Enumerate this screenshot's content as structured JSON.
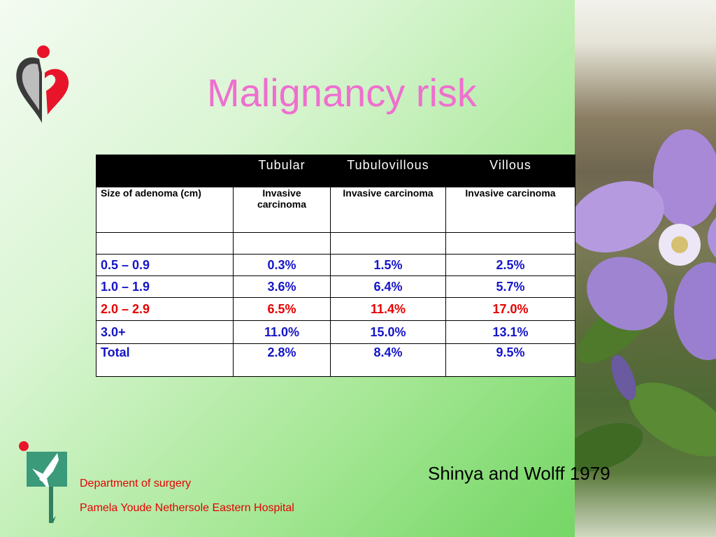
{
  "slide": {
    "title": "Malignancy risk",
    "citation": "Shinya and Wolff 1979",
    "footer": {
      "department": "Department of surgery",
      "hospital": "Pamela Youde Nethersole Eastern Hospital"
    }
  },
  "table": {
    "columns": [
      "",
      "Tubular",
      "Tubulovillous",
      "Villous"
    ],
    "subheader": [
      "Size of adenoma (cm)",
      "Invasive carcinoma",
      "Invasive carcinoma",
      "Invasive carcinoma"
    ],
    "rows": [
      {
        "size": "0.5 – 0.9",
        "tubular": "0.3%",
        "tubulovillous": "1.5%",
        "villous": "2.5%"
      },
      {
        "size": "1.0 – 1.9",
        "tubular": "3.6%",
        "tubulovillous": "6.4%",
        "villous": "5.7%"
      },
      {
        "size": "2.0 – 2.9",
        "tubular": "6.5%",
        "tubulovillous": "11.4%",
        "villous": "17.0%"
      },
      {
        "size": "3.0+",
        "tubular": "11.0%",
        "tubulovillous": "15.0%",
        "villous": "13.1%"
      },
      {
        "size": "Total",
        "tubular": "2.8%",
        "tubulovillous": "8.4%",
        "villous": "9.5%"
      }
    ]
  },
  "colors": {
    "title": "#ef6fcf",
    "data_text": "#1515c8",
    "highlight_row": "#e60000",
    "footer_text": "#e60000"
  },
  "icons": {
    "top_logo": "hospital-heart-logo-icon",
    "bottom_logo": "department-logo-icon",
    "photo": "periwinkle-flower-photo"
  }
}
